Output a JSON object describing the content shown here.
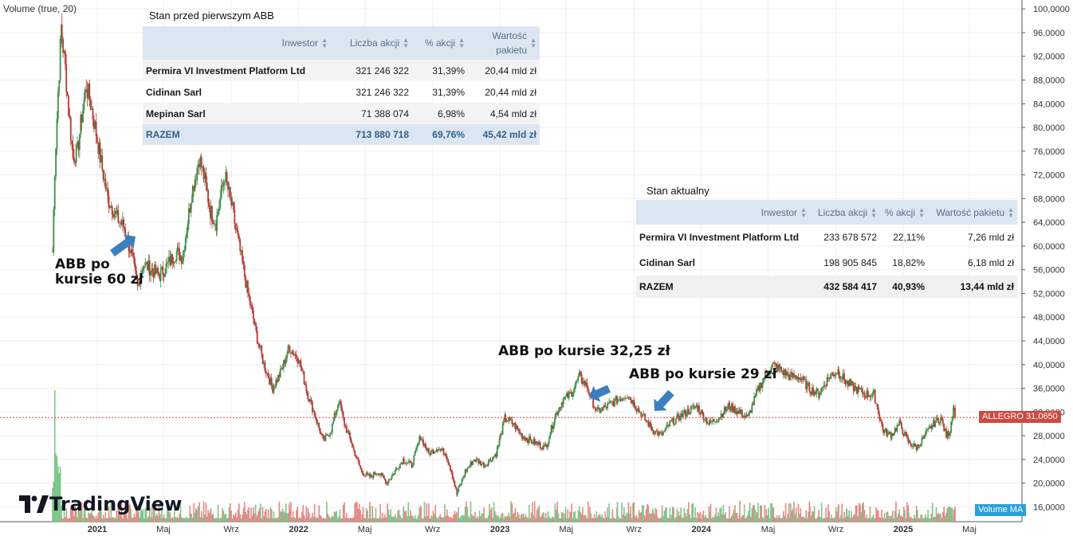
{
  "chart_data": {
    "type": "candlestick",
    "symbol": "ALLEGRO",
    "last_price": 31.065,
    "last_price_label": "31,0650",
    "volume_label": "Volume (true, 20)",
    "volume_ma_label": "Volume MA",
    "ylim": [
      13.5,
      101.5
    ],
    "y_ticks": [
      "100,0000",
      "96,0000",
      "92,0000",
      "88,0000",
      "84,0000",
      "80,0000",
      "76,0000",
      "72,0000",
      "68,0000",
      "64,0000",
      "60,0000",
      "56,0000",
      "52,0000",
      "48,0000",
      "44,0000",
      "40,0000",
      "36,0000",
      "32,0000",
      "28,0000",
      "24,0000",
      "20,0000",
      "16,0000"
    ],
    "x_ticks": [
      {
        "label": "2021",
        "date": "2021-01",
        "bold": true
      },
      {
        "label": "Maj",
        "date": "2021-05",
        "bold": false
      },
      {
        "label": "Wrz",
        "date": "2021-09",
        "bold": false
      },
      {
        "label": "2022",
        "date": "2022-01",
        "bold": true
      },
      {
        "label": "Maj",
        "date": "2022-05",
        "bold": false
      },
      {
        "label": "Wrz",
        "date": "2022-09",
        "bold": false
      },
      {
        "label": "2023",
        "date": "2023-01",
        "bold": true
      },
      {
        "label": "Maj",
        "date": "2023-05",
        "bold": false
      },
      {
        "label": "Wrz",
        "date": "2023-09",
        "bold": false
      },
      {
        "label": "2024",
        "date": "2024-01",
        "bold": true
      },
      {
        "label": "Maj",
        "date": "2024-05",
        "bold": false
      },
      {
        "label": "Wrz",
        "date": "2024-09",
        "bold": false
      },
      {
        "label": "2025",
        "date": "2025-01",
        "bold": true
      },
      {
        "label": "Maj",
        "date": "2025-05",
        "bold": false
      }
    ],
    "price_path": [
      [
        "2020-10-12",
        59
      ],
      [
        "2020-10-16",
        73
      ],
      [
        "2020-10-22",
        86
      ],
      [
        "2020-10-28",
        97
      ],
      [
        "2020-11-04",
        90
      ],
      [
        "2020-11-10",
        83
      ],
      [
        "2020-11-18",
        75
      ],
      [
        "2020-11-26",
        76
      ],
      [
        "2020-12-04",
        82
      ],
      [
        "2020-12-12",
        87
      ],
      [
        "2020-12-20",
        84
      ],
      [
        "2021-01-05",
        76
      ],
      [
        "2021-01-20",
        68
      ],
      [
        "2021-02-05",
        65
      ],
      [
        "2021-02-20",
        63
      ],
      [
        "2021-03-05",
        58
      ],
      [
        "2021-03-15",
        53
      ],
      [
        "2021-03-25",
        57
      ],
      [
        "2021-04-10",
        56
      ],
      [
        "2021-04-25",
        55
      ],
      [
        "2021-05-10",
        57
      ],
      [
        "2021-05-25",
        59
      ],
      [
        "2021-06-05",
        58
      ],
      [
        "2021-06-20",
        68
      ],
      [
        "2021-07-05",
        75
      ],
      [
        "2021-07-15",
        71
      ],
      [
        "2021-07-25",
        66
      ],
      [
        "2021-08-05",
        64
      ],
      [
        "2021-08-20",
        72
      ],
      [
        "2021-09-01",
        67
      ],
      [
        "2021-09-15",
        60
      ],
      [
        "2021-10-01",
        52
      ],
      [
        "2021-10-15",
        46
      ],
      [
        "2021-10-30",
        40
      ],
      [
        "2021-11-15",
        36
      ],
      [
        "2021-12-01",
        39
      ],
      [
        "2021-12-15",
        43
      ],
      [
        "2022-01-01",
        41
      ],
      [
        "2022-01-15",
        36
      ],
      [
        "2022-02-01",
        31
      ],
      [
        "2022-02-15",
        27
      ],
      [
        "2022-03-01",
        29
      ],
      [
        "2022-03-15",
        34
      ],
      [
        "2022-03-25",
        30
      ],
      [
        "2022-04-10",
        26
      ],
      [
        "2022-04-25",
        22
      ],
      [
        "2022-05-10",
        21
      ],
      [
        "2022-05-25",
        22
      ],
      [
        "2022-06-10",
        20
      ],
      [
        "2022-06-25",
        22
      ],
      [
        "2022-07-10",
        24
      ],
      [
        "2022-07-25",
        23
      ],
      [
        "2022-08-10",
        28
      ],
      [
        "2022-08-25",
        25
      ],
      [
        "2022-09-10",
        26
      ],
      [
        "2022-09-25",
        25
      ],
      [
        "2022-10-05",
        22
      ],
      [
        "2022-10-15",
        18
      ],
      [
        "2022-10-30",
        22
      ],
      [
        "2022-11-15",
        24
      ],
      [
        "2022-12-05",
        23
      ],
      [
        "2022-12-25",
        25
      ],
      [
        "2023-01-10",
        31
      ],
      [
        "2023-01-25",
        30
      ],
      [
        "2023-02-10",
        28
      ],
      [
        "2023-03-01",
        27
      ],
      [
        "2023-03-25",
        26
      ],
      [
        "2023-04-10",
        31
      ],
      [
        "2023-04-25",
        34
      ],
      [
        "2023-05-10",
        35
      ],
      [
        "2023-05-25",
        38
      ],
      [
        "2023-06-10",
        36
      ],
      [
        "2023-06-25",
        32
      ],
      [
        "2023-07-15",
        33
      ],
      [
        "2023-08-01",
        34
      ],
      [
        "2023-08-20",
        35
      ],
      [
        "2023-09-05",
        33
      ],
      [
        "2023-09-20",
        31
      ],
      [
        "2023-10-05",
        29
      ],
      [
        "2023-10-20",
        28
      ],
      [
        "2023-11-05",
        30
      ],
      [
        "2023-11-20",
        31
      ],
      [
        "2023-12-05",
        32
      ],
      [
        "2023-12-25",
        33
      ],
      [
        "2024-01-15",
        30
      ],
      [
        "2024-02-01",
        31
      ],
      [
        "2024-02-20",
        33
      ],
      [
        "2024-03-10",
        32
      ],
      [
        "2024-03-25",
        31
      ],
      [
        "2024-04-10",
        35
      ],
      [
        "2024-04-25",
        38
      ],
      [
        "2024-05-10",
        40
      ],
      [
        "2024-05-25",
        39
      ],
      [
        "2024-06-10",
        38
      ],
      [
        "2024-06-25",
        38
      ],
      [
        "2024-07-15",
        36
      ],
      [
        "2024-08-01",
        35
      ],
      [
        "2024-08-20",
        38
      ],
      [
        "2024-09-05",
        39
      ],
      [
        "2024-09-20",
        37
      ],
      [
        "2024-10-05",
        36
      ],
      [
        "2024-10-25",
        35
      ],
      [
        "2024-11-10",
        35
      ],
      [
        "2024-11-25",
        29
      ],
      [
        "2024-12-10",
        28
      ],
      [
        "2024-12-25",
        30
      ],
      [
        "2025-01-10",
        27
      ],
      [
        "2025-01-25",
        26
      ],
      [
        "2025-02-10",
        28
      ],
      [
        "2025-02-25",
        30
      ],
      [
        "2025-03-10",
        31
      ],
      [
        "2025-03-20",
        28
      ],
      [
        "2025-03-28",
        29
      ],
      [
        "2025-04-02",
        33
      ],
      [
        "2025-04-07",
        31.065
      ]
    ]
  },
  "table1": {
    "title": "Stan przed pierwszym ABB",
    "headers": [
      "Inwestor",
      "Liczba akcji",
      "% akcji",
      "Wartość pakietu"
    ],
    "rows": [
      [
        "Permira VI Investment Platform Ltd",
        "321 246 322",
        "31,39%",
        "20,44 mld zł"
      ],
      [
        "Cidinan Sarl",
        "321 246 322",
        "31,39%",
        "20,44 mld zł"
      ],
      [
        "Mepinan Sarl",
        "71 388 074",
        "6,98%",
        "4,54 mld zł"
      ]
    ],
    "total": [
      "RAZEM",
      "713 880 718",
      "69,76%",
      "45,42 mld zł"
    ]
  },
  "table2": {
    "title": "Stan aktualny",
    "headers": [
      "Inwestor",
      "Liczba akcji",
      "% akcji",
      "Wartość pakietu"
    ],
    "rows": [
      [
        "Permira VI Investment Platform Ltd",
        "233 678 572",
        "22,11%",
        "7,26 mld zł"
      ],
      [
        "Cidinan Sarl",
        "198 905 845",
        "18,82%",
        "6,18 mld zł"
      ]
    ],
    "total": [
      "RAZEM",
      "432 584 417",
      "40,93%",
      "13,44 mld zł"
    ]
  },
  "annotations": {
    "abb1_line1": "ABB po",
    "abb1_line2": "kursie 60 zł",
    "abb2": "ABB po kursie 32,25 zł",
    "abb3": "ABB po kursie 29 zł"
  },
  "brand": "TradingView",
  "colors": {
    "up": "#3f8f4a",
    "down": "#b63a32",
    "price_line": "#d1493f",
    "arrow": "#3c7fc1",
    "vol_up": "#7fc68a",
    "vol_down": "#e58a85"
  }
}
